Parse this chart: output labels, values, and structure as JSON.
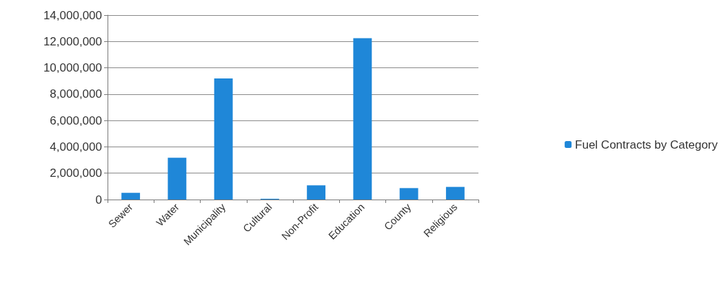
{
  "chart_data": {
    "type": "bar",
    "categories": [
      "Sewer",
      "Water",
      "Municipality",
      "Cultural",
      "Non-Profit",
      "Education",
      "County",
      "Religious"
    ],
    "series": [
      {
        "name": "Fuel Contracts by Category",
        "color": "#1f87d8",
        "values": [
          510000,
          3180000,
          9200000,
          60000,
          1080000,
          12250000,
          870000,
          960000
        ]
      }
    ],
    "ylim": [
      0,
      14000000
    ],
    "yticks": [
      0,
      {
        "value": 2000000,
        "label": "2,000,000"
      },
      {
        "value": 4000000,
        "label": "4,000,000"
      },
      {
        "value": 6000000,
        "label": "6,000,000"
      },
      {
        "value": 8000000,
        "label": "8,000,000"
      },
      {
        "value": 10000000,
        "label": "10,000,000"
      },
      {
        "value": 12000000,
        "label": "12,000,000"
      },
      {
        "value": 14000000,
        "label": "14,000,000"
      }
    ],
    "grid": "y",
    "legend": "right"
  }
}
